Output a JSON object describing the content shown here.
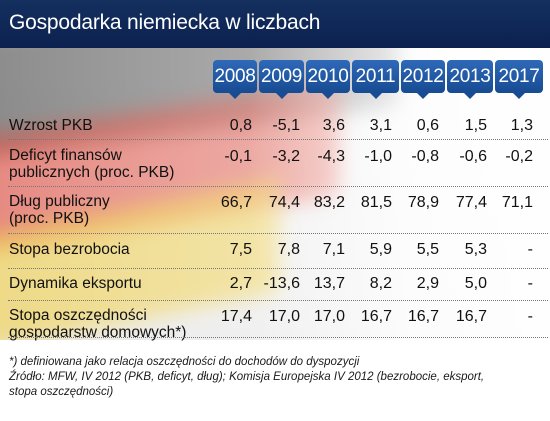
{
  "title": "Gospodarka niemiecka w liczbach",
  "years": [
    "2008",
    "2009",
    "2010",
    "2011",
    "2012",
    "2013",
    "2017"
  ],
  "rows": [
    {
      "label": [
        "Wzrost PKB"
      ],
      "values": [
        "0,8",
        "-5,1",
        "3,6",
        "3,1",
        "0,6",
        "1,5",
        "1,3"
      ]
    },
    {
      "label": [
        "Deficyt finansów",
        "publicznych (proc. PKB)"
      ],
      "values": [
        "-0,1",
        "-3,2",
        "-4,3",
        "-1,0",
        "-0,8",
        "-0,6",
        "-0,2"
      ]
    },
    {
      "label": [
        "Dług publiczny",
        "(proc. PKB)"
      ],
      "values": [
        "66,7",
        "74,4",
        "83,2",
        "81,5",
        "78,9",
        "77,4",
        "71,1"
      ]
    },
    {
      "label": [
        "Stopa bezrobocia"
      ],
      "values": [
        "7,5",
        "7,8",
        "7,1",
        "5,9",
        "5,5",
        "5,3",
        "-"
      ]
    },
    {
      "label": [
        "Dynamika eksportu"
      ],
      "values": [
        "2,7",
        "-13,6",
        "13,7",
        "8,2",
        "2,9",
        "5,0",
        "-"
      ]
    },
    {
      "label": [
        "Stopa oszczędności",
        "gospodarstw domowych*)"
      ],
      "values": [
        "17,4",
        "17,0",
        "17,0",
        "16,7",
        "16,7",
        "16,7",
        "-"
      ]
    }
  ],
  "footnotes": [
    "*) definiowana jako relacja oszczędności do dochodów do dyspozycji",
    "Źródło: MFW, IV 2012 (PKB, deficyt, dług); Komisja Europejska IV 2012 (bezrobocie, eksport,",
    "stopa oszczędności)"
  ],
  "colors": {
    "header_bg": "#14305f",
    "year_tab": "#1f57a3",
    "text": "#111111"
  }
}
